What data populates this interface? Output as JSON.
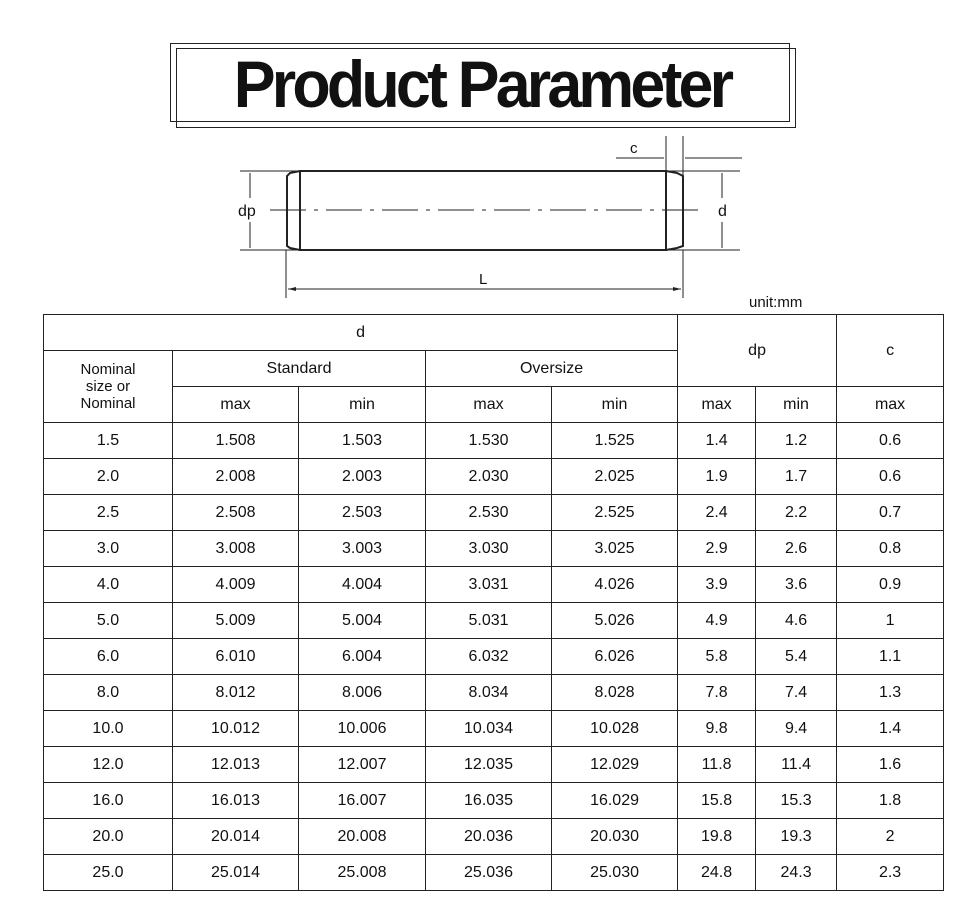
{
  "title": "Product Parameter",
  "diagram": {
    "label_c": "c",
    "label_dp": "dp",
    "label_d": "d",
    "label_L": "L"
  },
  "unit": "unit:mm",
  "table": {
    "header": {
      "d": "d",
      "nominal": "Nominal size or Nominal",
      "standard": "Standard",
      "oversize": "Oversize",
      "dp": "dp",
      "c": "c",
      "max": "max",
      "min": "min"
    },
    "rows": [
      [
        "1.5",
        "1.508",
        "1.503",
        "1.530",
        "1.525",
        "1.4",
        "1.2",
        "0.6"
      ],
      [
        "2.0",
        "2.008",
        "2.003",
        "2.030",
        "2.025",
        "1.9",
        "1.7",
        "0.6"
      ],
      [
        "2.5",
        "2.508",
        "2.503",
        "2.530",
        "2.525",
        "2.4",
        "2.2",
        "0.7"
      ],
      [
        "3.0",
        "3.008",
        "3.003",
        "3.030",
        "3.025",
        "2.9",
        "2.6",
        "0.8"
      ],
      [
        "4.0",
        "4.009",
        "4.004",
        "3.031",
        "4.026",
        "3.9",
        "3.6",
        "0.9"
      ],
      [
        "5.0",
        "5.009",
        "5.004",
        "5.031",
        "5.026",
        "4.9",
        "4.6",
        "1"
      ],
      [
        "6.0",
        "6.010",
        "6.004",
        "6.032",
        "6.026",
        "5.8",
        "5.4",
        "1.1"
      ],
      [
        "8.0",
        "8.012",
        "8.006",
        "8.034",
        "8.028",
        "7.8",
        "7.4",
        "1.3"
      ],
      [
        "10.0",
        "10.012",
        "10.006",
        "10.034",
        "10.028",
        "9.8",
        "9.4",
        "1.4"
      ],
      [
        "12.0",
        "12.013",
        "12.007",
        "12.035",
        "12.029",
        "11.8",
        "11.4",
        "1.6"
      ],
      [
        "16.0",
        "16.013",
        "16.007",
        "16.035",
        "16.029",
        "15.8",
        "15.3",
        "1.8"
      ],
      [
        "20.0",
        "20.014",
        "20.008",
        "20.036",
        "20.030",
        "19.8",
        "19.3",
        "2"
      ],
      [
        "25.0",
        "25.014",
        "25.008",
        "25.036",
        "25.030",
        "24.8",
        "24.3",
        "2.3"
      ]
    ]
  }
}
